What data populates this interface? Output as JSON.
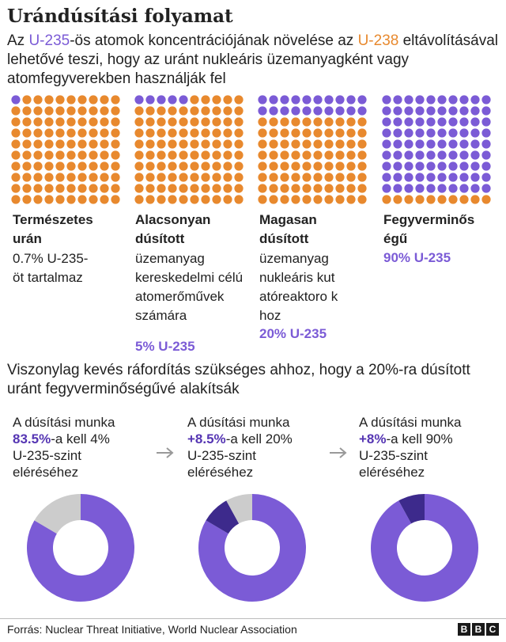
{
  "title": "Urándúsítási folyamat",
  "subtitle": {
    "p1": "Az ",
    "u235": "U-235",
    "p2": "-ös atomok koncentrációjának növelése az ",
    "u238": "U-238",
    "p3": " eltávolításával lehetővé teszi, hogy az uránt nukleáris üzemanyagként vagy atomfegyverekben használják fel"
  },
  "colors": {
    "u235": "#7b5bd6",
    "u238": "#e8892e",
    "extra": "#3d2a8c",
    "done": "#cccccc"
  },
  "categories": [
    {
      "title": "Természetes urán",
      "description": "0.7% U-235-öt tartalmaz",
      "pct_label": ""
    },
    {
      "title": "Alacsonyan dúsított",
      "description": "üzemanyag kereskedelmi célú atomerőművek számára",
      "pct_label": "5% U-235"
    },
    {
      "title": "Magasan dúsított",
      "description": "üzemanyag nukleáris kutatóreaktoro khoz",
      "pct_label": "20% U-235"
    },
    {
      "title": "Fegyverminős égű",
      "description": "",
      "pct_label": "90% U-235"
    }
  ],
  "section_text": "Viszonylag kevés ráfordítás szükséges ahhoz, hogy a 20%-ra dúsított uránt fegyverminőségűvé alakítsák",
  "work_items": [
    {
      "line1": "A dúsítási munka",
      "pct": "83.5%",
      "line2": "-a kell 4%",
      "line3": "U-235-szint",
      "line4": "eléréséhez"
    },
    {
      "line1": "A dúsítási munka",
      "pct": "+8.5%",
      "line2": "-a kell 20%",
      "line3": "U-235-szint",
      "line4": "eléréséhez"
    },
    {
      "line1": "A dúsítási munka",
      "pct": "+8%",
      "line2": "-a kell 90%",
      "line3": "U-235-szint",
      "line4": "eléréséhez"
    }
  ],
  "source": "Forrás: Nuclear Threat Initiative, World Nuclear Association",
  "logo": [
    "B",
    "B",
    "C"
  ],
  "chart_data": [
    {
      "type": "waffle",
      "grid": [
        10,
        10
      ],
      "series": [
        {
          "name": "U-235",
          "values": [
            0.7,
            5,
            20,
            90
          ]
        },
        {
          "name": "U-238",
          "values": [
            99.3,
            95,
            80,
            10
          ]
        }
      ],
      "categories": [
        "Természetes urán",
        "Alacsonyan dúsított",
        "Magasan dúsított",
        "Fegyverminős égű"
      ]
    },
    {
      "type": "pie",
      "variant": "donut",
      "categories": [
        "4% U-235",
        "20% U-235",
        "90% U-235"
      ],
      "donuts": [
        {
          "segments": [
            {
              "value": 83.5,
              "kind": "u235"
            },
            {
              "value": 16.5,
              "kind": "done"
            }
          ]
        },
        {
          "segments": [
            {
              "value": 83.5,
              "kind": "u235"
            },
            {
              "value": 8.5,
              "kind": "extra"
            },
            {
              "value": 8,
              "kind": "done"
            }
          ]
        },
        {
          "segments": [
            {
              "value": 92,
              "kind": "u235"
            },
            {
              "value": 8,
              "kind": "extra"
            }
          ]
        }
      ]
    }
  ]
}
